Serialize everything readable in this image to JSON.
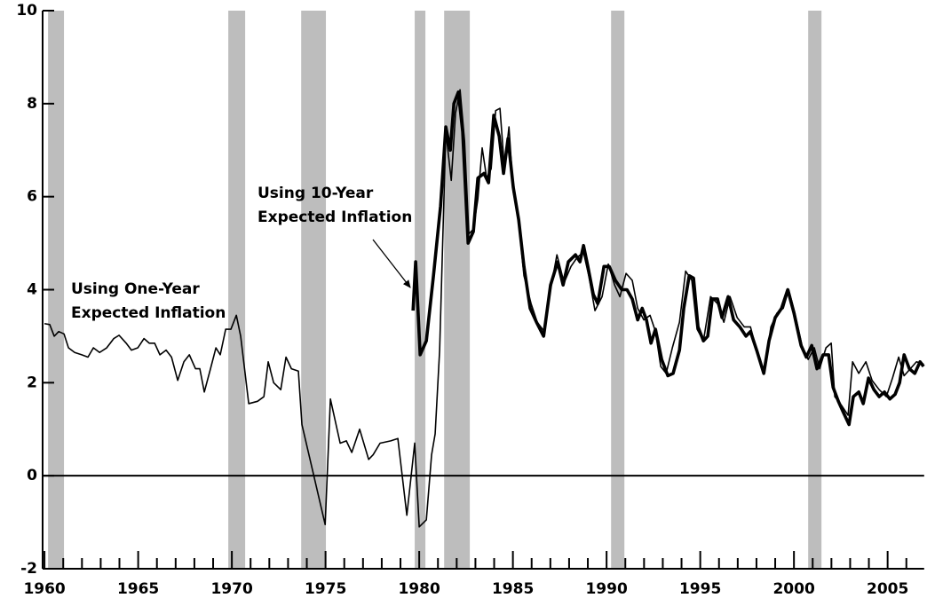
{
  "chart_data": {
    "type": "line",
    "xlim": [
      1959.9,
      2006.95
    ],
    "xticks": [
      1960,
      1965,
      1970,
      1975,
      1980,
      1985,
      1990,
      1995,
      2000,
      2005
    ],
    "xminorticks": [
      1961,
      1962,
      1963,
      1964,
      1966,
      1967,
      1968,
      1969,
      1971,
      1972,
      1973,
      1974,
      1976,
      1977,
      1978,
      1979,
      1981,
      1982,
      1983,
      1984,
      1986,
      1987,
      1988,
      1989,
      1991,
      1992,
      1993,
      1994,
      1996,
      1997,
      1998,
      1999,
      2001,
      2002,
      2003,
      2004,
      2006
    ],
    "ylim": [
      -2,
      10
    ],
    "yticks": [
      -2,
      0,
      2,
      4,
      6,
      8,
      10
    ],
    "reference_line": 0,
    "shading_color": "#bdbdbd",
    "recessions": [
      [
        1960.19,
        1961.04
      ],
      [
        1969.81,
        1970.71
      ],
      [
        1973.7,
        1975.02
      ],
      [
        1979.76,
        1980.33
      ],
      [
        1981.33,
        1982.7
      ],
      [
        1990.24,
        1990.95
      ],
      [
        2000.76,
        2001.47
      ]
    ],
    "annotations": [
      {
        "lines": [
          "Using One-Year",
          "Expected Inflation"
        ]
      },
      {
        "lines": [
          "Using 10-Year",
          "Expected Inflation"
        ]
      }
    ],
    "series": [
      {
        "color": "#000000",
        "line_width": 1.6,
        "x": [
          1960.0,
          1960.28,
          1960.52,
          1960.76,
          1961.04,
          1961.28,
          1961.61,
          1961.99,
          1962.32,
          1962.61,
          1962.94,
          1963.32,
          1963.7,
          1963.98,
          1964.36,
          1964.64,
          1964.98,
          1965.31,
          1965.59,
          1965.88,
          1966.16,
          1966.49,
          1966.78,
          1967.11,
          1967.44,
          1967.73,
          1968.06,
          1968.29,
          1968.53,
          1968.86,
          1969.15,
          1969.38,
          1969.67,
          1969.95,
          1970.24,
          1970.47,
          1970.9,
          1971.37,
          1971.71,
          1971.94,
          1972.23,
          1972.61,
          1972.89,
          1973.18,
          1973.55,
          1973.74,
          1974.98,
          1975.26,
          1975.78,
          1976.11,
          1976.4,
          1976.82,
          1977.3,
          1977.54,
          1977.91,
          1978.48,
          1978.86,
          1979.34,
          1979.76,
          1980.0,
          1980.38,
          1980.66,
          1980.85,
          1981.09,
          1981.42,
          1981.71,
          1981.94,
          1982.18,
          1982.42,
          1982.65,
          1982.89,
          1983.13,
          1983.36,
          1983.6,
          1983.84,
          1984.08,
          1984.31,
          1984.55,
          1984.79,
          1985.02,
          1985.26,
          1985.59,
          1985.97,
          1986.3,
          1986.68,
          1987.01,
          1987.35,
          1987.73,
          1988.1,
          1988.44,
          1988.77,
          1989.05,
          1989.38,
          1989.76,
          1990.09,
          1990.43,
          1990.71,
          1991.04,
          1991.37,
          1991.66,
          1991.99,
          1992.32,
          1992.61,
          1992.89,
          1993.18,
          1993.51,
          1993.89,
          1994.22,
          1994.55,
          1994.83,
          1995.17,
          1995.55,
          1995.92,
          1996.26,
          1996.59,
          1996.97,
          1997.35,
          1997.68,
          1998.01,
          1998.39,
          1998.77,
          1999.1,
          1999.43,
          1999.72,
          2000.05,
          2000.43,
          2000.76,
          2001.09,
          2001.37,
          2001.71,
          2001.99,
          2002.18,
          2002.56,
          2002.89,
          2003.13,
          2003.46,
          2003.84,
          2004.17,
          2004.55,
          2004.93,
          2005.26,
          2005.59,
          2005.88,
          2006.21,
          2006.54,
          2006.92
        ],
        "values": [
          3.27,
          3.25,
          3.0,
          3.1,
          3.05,
          2.75,
          2.65,
          2.6,
          2.55,
          2.75,
          2.65,
          2.75,
          2.95,
          3.02,
          2.85,
          2.7,
          2.75,
          2.95,
          2.85,
          2.85,
          2.6,
          2.7,
          2.55,
          2.05,
          2.45,
          2.6,
          2.3,
          2.3,
          1.8,
          2.3,
          2.75,
          2.6,
          3.15,
          3.15,
          3.45,
          3.0,
          1.55,
          1.6,
          1.7,
          2.45,
          2.0,
          1.85,
          2.55,
          2.3,
          2.25,
          1.1,
          -1.05,
          1.65,
          0.7,
          0.75,
          0.5,
          1.0,
          0.35,
          0.45,
          0.7,
          0.75,
          0.8,
          -0.85,
          0.7,
          -1.1,
          -0.95,
          0.45,
          0.9,
          2.7,
          7.4,
          6.35,
          7.8,
          8.3,
          7.2,
          5.2,
          5.3,
          5.95,
          7.05,
          6.4,
          6.6,
          7.85,
          7.9,
          6.6,
          7.5,
          6.1,
          5.65,
          4.3,
          3.7,
          3.3,
          3.1,
          4.0,
          4.75,
          4.15,
          4.5,
          4.7,
          4.8,
          4.3,
          3.55,
          3.85,
          4.55,
          4.1,
          3.85,
          4.35,
          4.2,
          3.6,
          3.35,
          3.45,
          3.1,
          2.35,
          2.2,
          2.75,
          3.3,
          4.4,
          4.2,
          3.15,
          2.9,
          3.85,
          3.7,
          3.3,
          3.85,
          3.4,
          3.2,
          3.2,
          2.7,
          2.2,
          3.2,
          3.5,
          3.6,
          4.0,
          3.5,
          2.8,
          2.5,
          2.75,
          2.3,
          2.75,
          2.85,
          1.7,
          1.5,
          1.3,
          2.45,
          2.2,
          2.45,
          2.05,
          1.85,
          1.7,
          2.1,
          2.55,
          2.15,
          2.3,
          2.45,
          2.4
        ]
      },
      {
        "color": "#000000",
        "line_width": 3.6,
        "x": [
          1979.67,
          1979.81,
          1980.05,
          1980.38,
          1980.76,
          1981.14,
          1981.42,
          1981.66,
          1981.85,
          1982.09,
          1982.32,
          1982.61,
          1982.89,
          1983.13,
          1983.46,
          1983.7,
          1983.98,
          1984.27,
          1984.5,
          1984.74,
          1985.02,
          1985.31,
          1985.59,
          1985.92,
          1986.26,
          1986.64,
          1987.01,
          1987.39,
          1987.68,
          1987.96,
          1988.34,
          1988.58,
          1988.77,
          1989.0,
          1989.29,
          1989.53,
          1989.86,
          1990.14,
          1990.47,
          1990.81,
          1991.09,
          1991.37,
          1991.66,
          1991.9,
          1992.13,
          1992.37,
          1992.61,
          1992.94,
          1993.27,
          1993.55,
          1993.89,
          1994.12,
          1994.41,
          1994.64,
          1994.88,
          1995.17,
          1995.4,
          1995.64,
          1995.92,
          1996.16,
          1996.49,
          1996.78,
          1997.11,
          1997.44,
          1997.68,
          1998.01,
          1998.39,
          1998.67,
          1999.0,
          1999.34,
          1999.67,
          2000.0,
          2000.38,
          2000.66,
          2000.95,
          2001.23,
          2001.56,
          2001.85,
          2002.09,
          2002.37,
          2002.65,
          2002.94,
          2003.17,
          2003.46,
          2003.7,
          2003.98,
          2004.27,
          2004.55,
          2004.83,
          2005.12,
          2005.4,
          2005.64,
          2005.88,
          2006.16,
          2006.45,
          2006.73,
          2006.92
        ],
        "values": [
          3.55,
          4.6,
          2.6,
          2.9,
          4.3,
          5.8,
          7.5,
          7.0,
          8.0,
          8.25,
          7.4,
          5.0,
          5.25,
          6.4,
          6.5,
          6.3,
          7.75,
          7.3,
          6.5,
          7.25,
          6.2,
          5.5,
          4.5,
          3.6,
          3.3,
          3.0,
          4.1,
          4.6,
          4.1,
          4.6,
          4.75,
          4.6,
          4.95,
          4.5,
          3.9,
          3.7,
          4.5,
          4.5,
          4.2,
          4.0,
          4.0,
          3.8,
          3.35,
          3.6,
          3.35,
          2.85,
          3.15,
          2.5,
          2.15,
          2.2,
          2.7,
          3.6,
          4.3,
          4.25,
          3.2,
          2.9,
          3.0,
          3.8,
          3.8,
          3.4,
          3.85,
          3.35,
          3.2,
          3.0,
          3.1,
          2.7,
          2.2,
          2.9,
          3.4,
          3.6,
          4.0,
          3.5,
          2.8,
          2.55,
          2.8,
          2.3,
          2.6,
          2.6,
          1.9,
          1.6,
          1.35,
          1.1,
          1.7,
          1.8,
          1.55,
          2.1,
          1.85,
          1.7,
          1.8,
          1.65,
          1.75,
          2.0,
          2.6,
          2.3,
          2.2,
          2.45,
          2.35
        ]
      }
    ]
  }
}
